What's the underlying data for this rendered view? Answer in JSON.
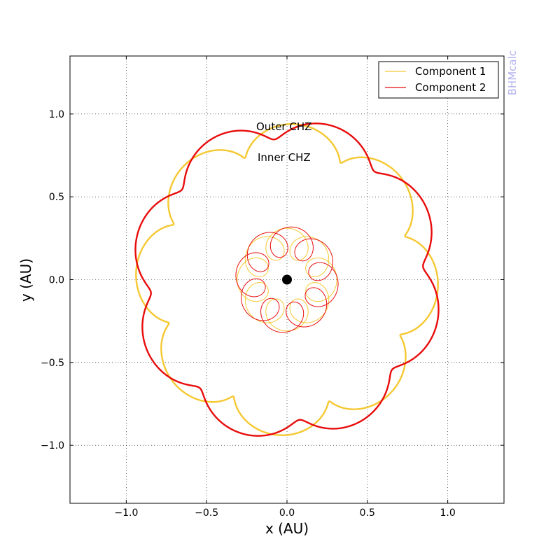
{
  "chart_data": {
    "type": "line",
    "xlabel": "x (AU)",
    "ylabel": "y (AU)",
    "xlim": [
      -1.35,
      1.35
    ],
    "ylim": [
      -1.35,
      1.35
    ],
    "xticks": [
      -1.0,
      -0.5,
      0.0,
      0.5,
      1.0
    ],
    "yticks": [
      -1.0,
      -0.5,
      0.0,
      0.5,
      1.0
    ],
    "xtick_labels": [
      "−1.0",
      "−0.5",
      "0.0",
      "0.5",
      "1.0"
    ],
    "ytick_labels": [
      "−1.0",
      "−0.5",
      "0.0",
      "0.5",
      "1.0"
    ],
    "grid": true,
    "legend_position": "top-right",
    "series": [
      {
        "name": "Component 1",
        "color": "#f5c832"
      },
      {
        "name": "Component 2",
        "color": "#e80c0c"
      }
    ],
    "center": {
      "x": 0.0,
      "y": 0.0
    },
    "annotations": [
      "Outer CHZ",
      "Inner CHZ"
    ],
    "watermark": "BHMcalc"
  }
}
